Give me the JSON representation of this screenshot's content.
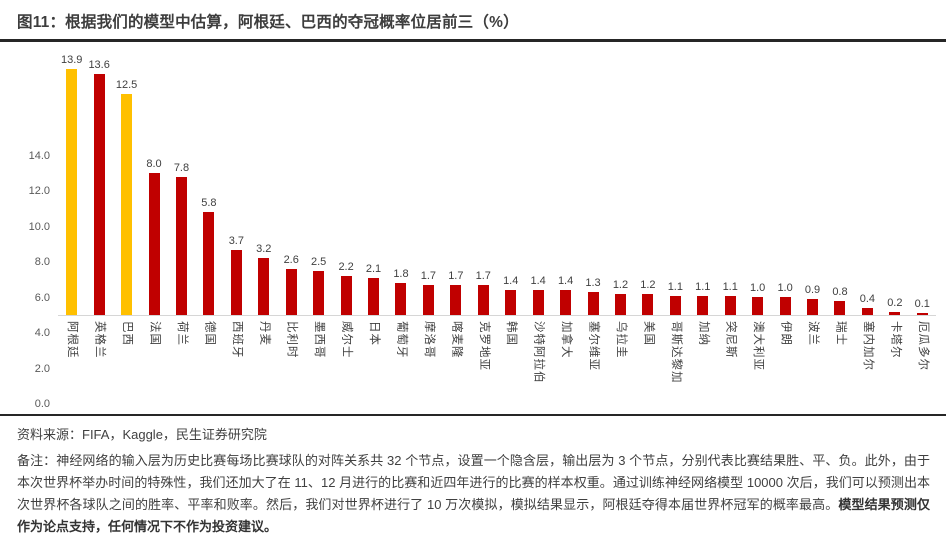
{
  "header": {
    "title": "图11：根据我们的模型中估算，阿根廷、巴西的夺冠概率位居前三（%）"
  },
  "chart_data": {
    "type": "bar",
    "title": "图11：根据我们的模型中估算，阿根廷、巴西的夺冠概率位居前三（%）",
    "xlabel": "",
    "ylabel": "",
    "categories": [
      "阿根廷",
      "英格兰",
      "巴西",
      "法国",
      "荷兰",
      "德国",
      "西班牙",
      "丹麦",
      "比利时",
      "墨西哥",
      "威尔士",
      "日本",
      "葡萄牙",
      "摩洛哥",
      "喀麦隆",
      "克罗地亚",
      "韩国",
      "沙特阿拉伯",
      "加拿大",
      "塞尔维亚",
      "乌拉圭",
      "美国",
      "哥斯达黎加",
      "加纳",
      "突尼斯",
      "澳大利亚",
      "伊朗",
      "波兰",
      "瑞士",
      "塞内加尔",
      "卡塔尔",
      "厄瓜多尔"
    ],
    "values": [
      13.9,
      13.6,
      12.5,
      8.0,
      7.8,
      5.8,
      3.7,
      3.2,
      2.6,
      2.5,
      2.2,
      2.1,
      1.8,
      1.7,
      1.7,
      1.7,
      1.4,
      1.4,
      1.4,
      1.3,
      1.2,
      1.2,
      1.1,
      1.1,
      1.1,
      1.0,
      1.0,
      0.9,
      0.8,
      0.4,
      0.2,
      0.1
    ],
    "highlight_indices": [
      0,
      2
    ],
    "colors": {
      "bar": "#C00000",
      "highlight": "#FFC000"
    },
    "ylim": [
      0,
      14
    ],
    "ytick_labels": [
      "0.0",
      "2.0",
      "4.0",
      "6.0",
      "8.0",
      "10.0",
      "12.0",
      "14.0"
    ],
    "grid": false,
    "legend": "none",
    "value_labels_shown": true
  },
  "footer": {
    "source": "资料来源：FIFA，Kaggle，民生证券研究院",
    "note": "备注：神经网络的输入层为历史比赛每场比赛球队的对阵关系共 32 个节点，设置一个隐含层，输出层为 3 个节点，分别代表比赛结果胜、平、负。此外，由于本次世界杯举办时间的特殊性，我们还加大了在 11、12 月进行的比赛和近四年进行的比赛的样本权重。通过训练神经网络模型 10000 次后，我们可以预测出本次世界杯各球队之间的胜率、平率和败率。然后，我们对世界杯进行了 10 万次模拟，模拟结果显示，阿根廷夺得本届世界杯冠军的概率最高。",
    "note_bold": "模型结果预测仅作为论点支持，任何情况下不作为投资建议。"
  }
}
